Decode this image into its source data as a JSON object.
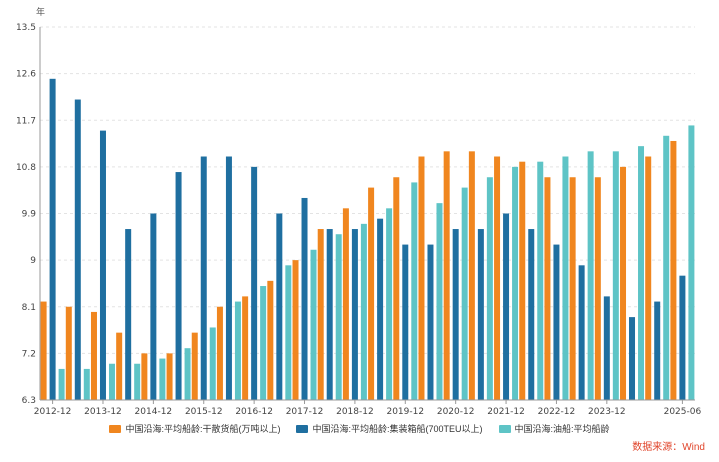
{
  "chart_data": {
    "type": "bar",
    "yunit": "年",
    "ylim": [
      6.3,
      13.5
    ],
    "yticks": [
      "6.3",
      "7.2",
      "8.1",
      "9",
      "9.9",
      "10.8",
      "11.7",
      "12.6",
      "13.5"
    ],
    "xticks": [
      "2012-12",
      "2013-12",
      "2014-12",
      "2015-12",
      "2016-12",
      "2017-12",
      "2018-12",
      "2019-12",
      "2020-12",
      "2021-12",
      "2022-12",
      "2023-12",
      "2025-06"
    ],
    "categories": [
      "2012-12",
      "2013-06",
      "2013-12",
      "2014-06",
      "2014-12",
      "2015-06",
      "2015-12",
      "2016-06",
      "2016-12",
      "2017-06",
      "2017-12",
      "2018-06",
      "2018-12",
      "2019-06",
      "2019-12",
      "2020-06",
      "2020-12",
      "2021-06",
      "2021-12",
      "2022-06",
      "2022-12",
      "2023-06",
      "2023-12",
      "2024-06",
      "2024-12",
      "2025-06"
    ],
    "series": [
      {
        "name": "中国沿海:平均船龄:干散货船(万吨以上)",
        "color": "#f0861f",
        "values": [
          8.2,
          8.1,
          8.0,
          7.6,
          7.2,
          7.2,
          7.6,
          8.1,
          8.3,
          8.6,
          9.0,
          9.6,
          10.0,
          10.4,
          10.6,
          11.0,
          11.1,
          11.1,
          11.0,
          10.9,
          10.6,
          10.6,
          10.6,
          10.8,
          11.0,
          11.3
        ]
      },
      {
        "name": "中国沿海:平均船龄:集装箱船(700TEU以上)",
        "color": "#1f6fa0",
        "values": [
          12.5,
          12.1,
          11.5,
          9.6,
          9.9,
          10.7,
          11.0,
          11.0,
          10.8,
          9.9,
          10.2,
          9.6,
          9.6,
          9.8,
          9.3,
          9.3,
          9.6,
          9.6,
          9.9,
          9.6,
          9.3,
          8.9,
          8.3,
          7.9,
          8.2,
          8.7
        ]
      },
      {
        "name": "中国沿海:油船:平均船龄",
        "color": "#5ec4c6",
        "values": [
          6.9,
          6.9,
          7.0,
          7.0,
          7.1,
          7.3,
          7.7,
          8.2,
          8.5,
          8.9,
          9.2,
          9.5,
          9.7,
          10.0,
          10.5,
          10.1,
          10.4,
          10.6,
          10.8,
          10.9,
          11.0,
          11.1,
          11.1,
          11.2,
          11.4,
          11.6
        ]
      }
    ],
    "grid": true,
    "legend_position": "bottom"
  },
  "source_text": "数据来源：Wind"
}
